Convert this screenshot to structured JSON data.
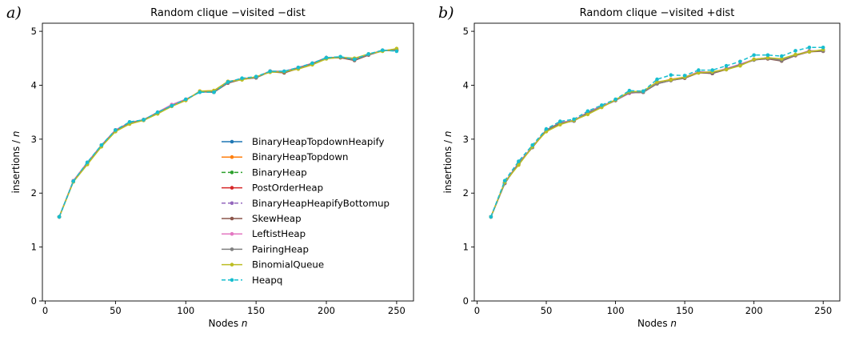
{
  "chart_data": [
    {
      "type": "line",
      "panel_label": "a)",
      "title": "Random clique −visited −dist",
      "xlabel": "Nodes ",
      "xlabel_var": "n",
      "ylabel": "insertions / ",
      "ylabel_var": "n",
      "xlim": [
        -2,
        262
      ],
      "ylim": [
        0,
        5.15
      ],
      "xticks": [
        0,
        50,
        100,
        150,
        200,
        250
      ],
      "yticks": [
        0,
        1,
        2,
        3,
        4,
        5
      ],
      "grid": false,
      "legend": "center-right",
      "x": [
        10,
        20,
        30,
        40,
        50,
        60,
        70,
        80,
        90,
        100,
        110,
        120,
        130,
        140,
        150,
        160,
        170,
        180,
        190,
        200,
        210,
        220,
        230,
        240,
        250
      ],
      "series": [
        {
          "name": "BinaryHeapTopdownHeapify",
          "color": "#1f77b4",
          "dashed": false,
          "values": [
            1.56,
            2.22,
            2.56,
            2.88,
            3.17,
            3.3,
            3.36,
            3.49,
            3.62,
            3.73,
            3.88,
            3.87,
            4.05,
            4.12,
            4.14,
            4.26,
            4.24,
            4.32,
            4.4,
            4.51,
            4.52,
            4.47,
            4.57,
            4.64,
            4.65
          ]
        },
        {
          "name": "BinaryHeapTopdown",
          "color": "#ff7f0e",
          "dashed": false,
          "values": [
            1.56,
            2.21,
            2.54,
            2.87,
            3.15,
            3.29,
            3.35,
            3.48,
            3.61,
            3.72,
            3.89,
            3.9,
            4.07,
            4.11,
            4.15,
            4.25,
            4.25,
            4.31,
            4.39,
            4.5,
            4.52,
            4.49,
            4.57,
            4.64,
            4.67
          ]
        },
        {
          "name": "BinaryHeap",
          "color": "#2ca02c",
          "dashed": true,
          "values": [
            1.56,
            2.22,
            2.56,
            2.88,
            3.17,
            3.3,
            3.36,
            3.49,
            3.62,
            3.73,
            3.88,
            3.87,
            4.05,
            4.12,
            4.14,
            4.26,
            4.24,
            4.32,
            4.4,
            4.51,
            4.52,
            4.47,
            4.57,
            4.64,
            4.65
          ]
        },
        {
          "name": "PostOrderHeap",
          "color": "#d62728",
          "dashed": false,
          "values": [
            1.56,
            2.22,
            2.55,
            2.88,
            3.16,
            3.3,
            3.36,
            3.48,
            3.62,
            3.73,
            3.88,
            3.88,
            4.05,
            4.12,
            4.15,
            4.26,
            4.24,
            4.32,
            4.4,
            4.51,
            4.52,
            4.47,
            4.57,
            4.64,
            4.65
          ]
        },
        {
          "name": "BinaryHeapHeapifyBottomup",
          "color": "#9467bd",
          "dashed": true,
          "values": [
            1.56,
            2.22,
            2.56,
            2.88,
            3.17,
            3.3,
            3.36,
            3.49,
            3.62,
            3.73,
            3.88,
            3.87,
            4.05,
            4.12,
            4.14,
            4.26,
            4.24,
            4.32,
            4.4,
            4.51,
            4.52,
            4.47,
            4.57,
            4.64,
            4.65
          ]
        },
        {
          "name": "SkewHeap",
          "color": "#8c564b",
          "dashed": false,
          "values": [
            1.56,
            2.22,
            2.55,
            2.88,
            3.16,
            3.3,
            3.35,
            3.48,
            3.62,
            3.73,
            3.88,
            3.87,
            4.04,
            4.11,
            4.14,
            4.25,
            4.23,
            4.31,
            4.4,
            4.5,
            4.51,
            4.46,
            4.56,
            4.64,
            4.65
          ]
        },
        {
          "name": "LeftistHeap",
          "color": "#e377c2",
          "dashed": false,
          "values": [
            1.56,
            2.23,
            2.57,
            2.89,
            3.17,
            3.31,
            3.36,
            3.5,
            3.64,
            3.74,
            3.87,
            3.88,
            4.06,
            4.12,
            4.15,
            4.26,
            4.26,
            4.33,
            4.41,
            4.51,
            4.52,
            4.48,
            4.57,
            4.65,
            4.65
          ]
        },
        {
          "name": "PairingHeap",
          "color": "#7f7f7f",
          "dashed": false,
          "values": [
            1.56,
            2.22,
            2.55,
            2.88,
            3.16,
            3.3,
            3.36,
            3.49,
            3.62,
            3.73,
            3.88,
            3.88,
            4.05,
            4.12,
            4.14,
            4.26,
            4.25,
            4.32,
            4.4,
            4.51,
            4.52,
            4.47,
            4.57,
            4.64,
            4.65
          ]
        },
        {
          "name": "BinomialQueue",
          "color": "#bcbd22",
          "dashed": false,
          "values": [
            1.56,
            2.21,
            2.53,
            2.86,
            3.14,
            3.28,
            3.35,
            3.47,
            3.61,
            3.72,
            3.89,
            3.9,
            4.07,
            4.1,
            4.16,
            4.24,
            4.25,
            4.3,
            4.38,
            4.49,
            4.52,
            4.5,
            4.58,
            4.63,
            4.68
          ]
        },
        {
          "name": "Heapq",
          "color": "#17becf",
          "dashed": true,
          "values": [
            1.56,
            2.22,
            2.57,
            2.89,
            3.17,
            3.32,
            3.36,
            3.5,
            3.62,
            3.74,
            3.87,
            3.87,
            4.06,
            4.13,
            4.16,
            4.26,
            4.26,
            4.33,
            4.41,
            4.51,
            4.53,
            4.48,
            4.58,
            4.65,
            4.63
          ]
        }
      ]
    },
    {
      "type": "line",
      "panel_label": "b)",
      "title": "Random clique −visited +dist",
      "xlabel": "Nodes ",
      "xlabel_var": "n",
      "ylabel": "insertions / ",
      "ylabel_var": "n",
      "xlim": [
        -2,
        262
      ],
      "ylim": [
        0,
        5.15
      ],
      "xticks": [
        0,
        50,
        100,
        150,
        200,
        250
      ],
      "yticks": [
        0,
        1,
        2,
        3,
        4,
        5
      ],
      "grid": false,
      "legend": "none",
      "x": [
        10,
        20,
        30,
        40,
        50,
        60,
        70,
        80,
        90,
        100,
        110,
        120,
        130,
        140,
        150,
        160,
        170,
        180,
        190,
        200,
        210,
        220,
        230,
        240,
        250
      ],
      "series": [
        {
          "name": "BinaryHeapTopdownHeapify",
          "color": "#1f77b4",
          "dashed": false,
          "values": [
            1.56,
            2.18,
            2.55,
            2.85,
            3.17,
            3.3,
            3.34,
            3.5,
            3.6,
            3.72,
            3.86,
            3.87,
            4.03,
            4.09,
            4.14,
            4.24,
            4.22,
            4.3,
            4.38,
            4.47,
            4.5,
            4.46,
            4.56,
            4.63,
            4.64
          ]
        },
        {
          "name": "BinaryHeapTopdown",
          "color": "#ff7f0e",
          "dashed": false,
          "values": [
            1.56,
            2.2,
            2.53,
            2.86,
            3.15,
            3.28,
            3.35,
            3.47,
            3.6,
            3.73,
            3.87,
            3.88,
            4.05,
            4.11,
            4.15,
            4.24,
            4.24,
            4.3,
            4.37,
            4.48,
            4.51,
            4.48,
            4.56,
            4.62,
            4.65
          ]
        },
        {
          "name": "BinaryHeap",
          "color": "#2ca02c",
          "dashed": true,
          "values": [
            1.56,
            2.18,
            2.55,
            2.85,
            3.17,
            3.3,
            3.34,
            3.5,
            3.6,
            3.72,
            3.86,
            3.87,
            4.03,
            4.09,
            4.14,
            4.24,
            4.22,
            4.3,
            4.38,
            4.47,
            4.5,
            4.46,
            4.56,
            4.63,
            4.64
          ]
        },
        {
          "name": "PostOrderHeap",
          "color": "#d62728",
          "dashed": false,
          "values": [
            1.56,
            2.19,
            2.55,
            2.85,
            3.16,
            3.3,
            3.34,
            3.49,
            3.6,
            3.72,
            3.86,
            3.87,
            4.03,
            4.09,
            4.14,
            4.24,
            4.22,
            4.3,
            4.38,
            4.47,
            4.5,
            4.46,
            4.56,
            4.63,
            4.64
          ]
        },
        {
          "name": "BinaryHeapHeapifyBottomup",
          "color": "#9467bd",
          "dashed": true,
          "values": [
            1.56,
            2.18,
            2.55,
            2.85,
            3.17,
            3.3,
            3.34,
            3.5,
            3.6,
            3.72,
            3.86,
            3.87,
            4.03,
            4.09,
            4.14,
            4.24,
            4.22,
            4.3,
            4.38,
            4.47,
            4.5,
            4.46,
            4.56,
            4.63,
            4.64
          ]
        },
        {
          "name": "SkewHeap",
          "color": "#8c564b",
          "dashed": false,
          "values": [
            1.56,
            2.19,
            2.54,
            2.85,
            3.16,
            3.29,
            3.34,
            3.49,
            3.6,
            3.72,
            3.86,
            3.87,
            4.03,
            4.09,
            4.13,
            4.23,
            4.22,
            4.29,
            4.37,
            4.47,
            4.49,
            4.45,
            4.55,
            4.62,
            4.63
          ]
        },
        {
          "name": "LeftistHeap",
          "color": "#e377c2",
          "dashed": false,
          "values": [
            1.56,
            2.2,
            2.56,
            2.86,
            3.17,
            3.31,
            3.35,
            3.5,
            3.62,
            3.72,
            3.85,
            3.88,
            4.04,
            4.1,
            4.15,
            4.25,
            4.24,
            4.31,
            4.39,
            4.48,
            4.51,
            4.47,
            4.56,
            4.64,
            4.64
          ]
        },
        {
          "name": "PairingHeap",
          "color": "#7f7f7f",
          "dashed": false,
          "values": [
            1.56,
            2.19,
            2.55,
            2.85,
            3.17,
            3.3,
            3.34,
            3.49,
            3.6,
            3.72,
            3.86,
            3.87,
            4.03,
            4.09,
            4.14,
            4.24,
            4.23,
            4.3,
            4.38,
            4.47,
            4.5,
            4.46,
            4.56,
            4.63,
            4.64
          ]
        },
        {
          "name": "BinomialQueue",
          "color": "#bcbd22",
          "dashed": false,
          "values": [
            1.56,
            2.2,
            2.52,
            2.86,
            3.14,
            3.27,
            3.35,
            3.46,
            3.59,
            3.73,
            3.88,
            3.89,
            4.06,
            4.1,
            4.15,
            4.23,
            4.25,
            4.29,
            4.36,
            4.48,
            4.51,
            4.49,
            4.57,
            4.62,
            4.66
          ]
        },
        {
          "name": "Heapq",
          "color": "#17becf",
          "dashed": true,
          "values": [
            1.56,
            2.23,
            2.59,
            2.89,
            3.19,
            3.33,
            3.37,
            3.52,
            3.63,
            3.74,
            3.9,
            3.89,
            4.11,
            4.19,
            4.18,
            4.28,
            4.28,
            4.36,
            4.44,
            4.56,
            4.56,
            4.54,
            4.64,
            4.7,
            4.7
          ]
        }
      ]
    }
  ]
}
